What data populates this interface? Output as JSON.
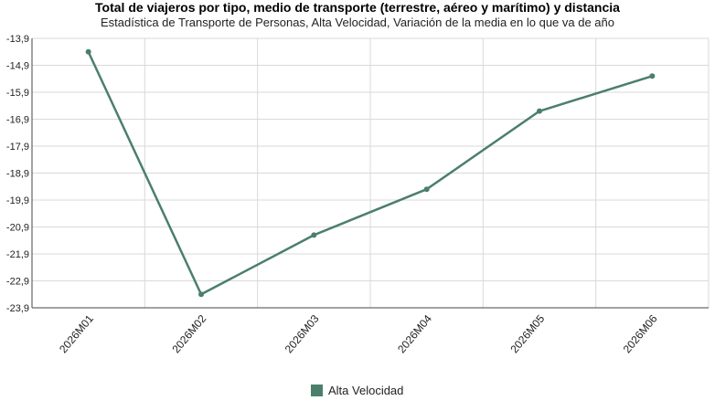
{
  "chart_data": {
    "type": "line",
    "title": "Total de viajeros por tipo, medio de transporte (terrestre, aéreo y marítimo) y distancia",
    "subtitle": "Estadística de Transporte de Personas, Alta Velocidad, Variación de la media en lo que va de año",
    "categories": [
      "2026M01",
      "2026M02",
      "2026M03",
      "2026M04",
      "2026M05",
      "2026M06"
    ],
    "series": [
      {
        "name": "Alta Velocidad",
        "values": [
          -14.4,
          -23.4,
          -21.2,
          -19.5,
          -16.6,
          -15.3
        ],
        "color": "#4b7f6b"
      }
    ],
    "y_ticks": [
      "-13,9",
      "-14,9",
      "-15,9",
      "-16,9",
      "-17,9",
      "-18,9",
      "-19,9",
      "-20,9",
      "-21,9",
      "-22,9",
      "-23,9"
    ],
    "ylim": [
      -23.9,
      -13.9
    ],
    "grid": true,
    "legend_position": "bottom"
  }
}
